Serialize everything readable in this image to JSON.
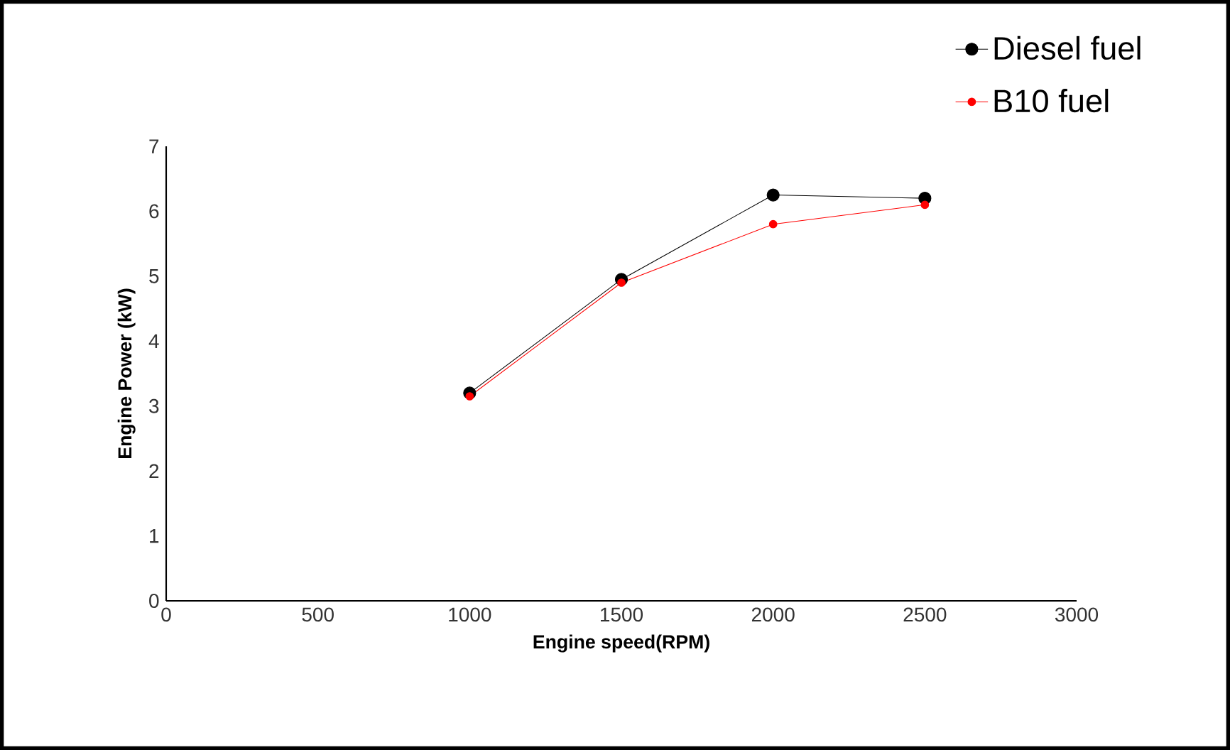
{
  "chart_data": {
    "type": "line",
    "xlabel": "Engine speed(RPM)",
    "ylabel": "Engine Power (kW)",
    "x": [
      1000,
      1500,
      2000,
      2500
    ],
    "series": [
      {
        "name": "Diesel fuel",
        "color": "#000000",
        "values": [
          3.2,
          4.95,
          6.25,
          6.2
        ]
      },
      {
        "name": "B10 fuel",
        "color": "#ff0000",
        "values": [
          3.15,
          4.9,
          5.8,
          6.1
        ]
      }
    ],
    "xlim": [
      0,
      3000
    ],
    "xticks": [
      0,
      500,
      1000,
      1500,
      2000,
      2500,
      3000
    ],
    "ylim": [
      0,
      7
    ],
    "yticks": [
      0,
      1,
      2,
      3,
      4,
      5,
      6,
      7
    ],
    "grid": false,
    "legend": "top right",
    "marker": "circle",
    "line_style": "solid"
  }
}
